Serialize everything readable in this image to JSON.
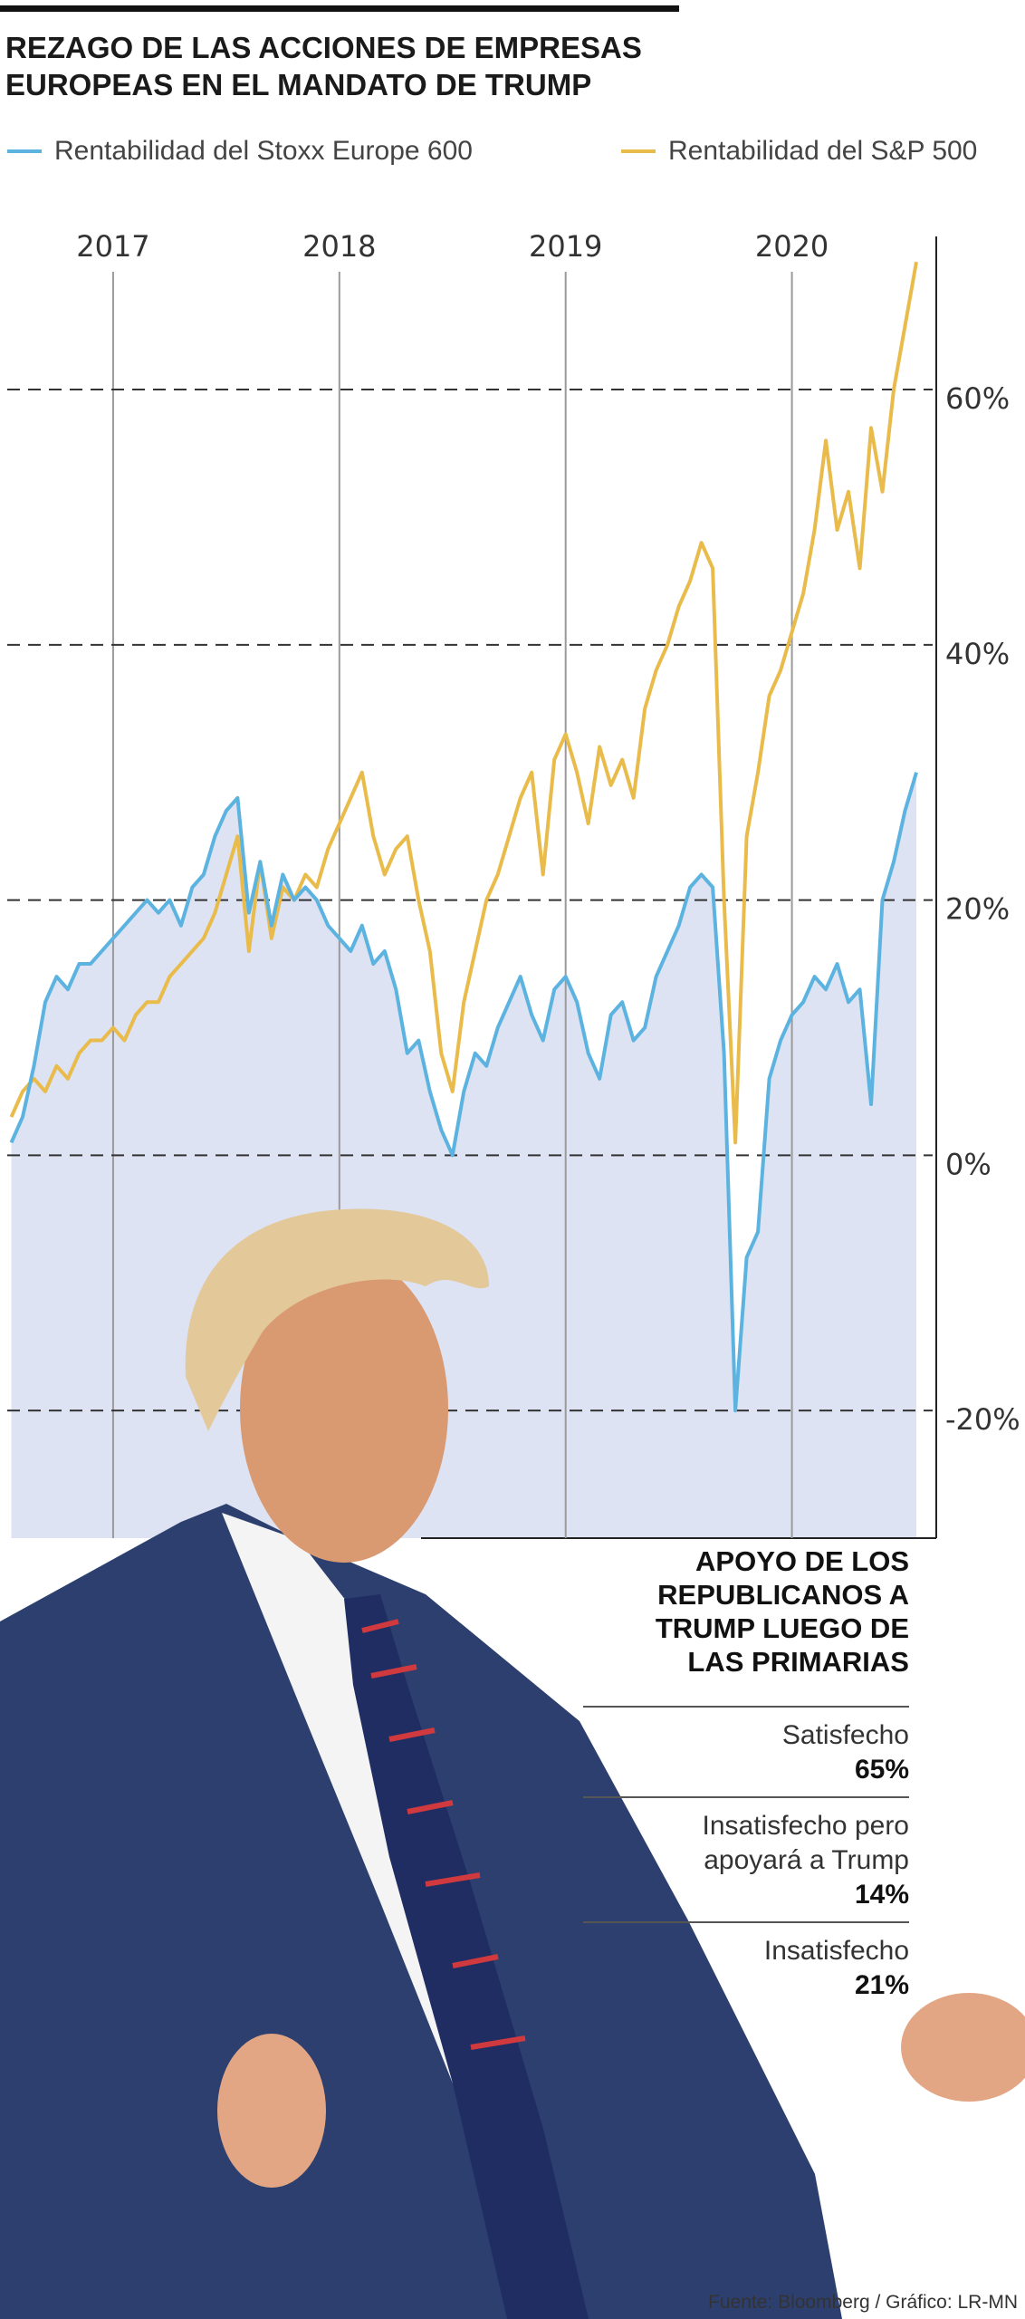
{
  "chart_data": {
    "type": "line",
    "title": "REZAGO DE LAS ACCIONES DE EMPRESAS EUROPEAS EN EL MANDATO DE TRUMP",
    "x": [
      2016.55,
      2016.6,
      2016.65,
      2016.7,
      2016.75,
      2016.8,
      2016.85,
      2016.9,
      2016.95,
      2017.0,
      2017.05,
      2017.1,
      2017.15,
      2017.2,
      2017.25,
      2017.3,
      2017.35,
      2017.4,
      2017.45,
      2017.5,
      2017.55,
      2017.6,
      2017.65,
      2017.7,
      2017.75,
      2017.8,
      2017.85,
      2017.9,
      2017.95,
      2018.0,
      2018.05,
      2018.1,
      2018.15,
      2018.2,
      2018.25,
      2018.3,
      2018.35,
      2018.4,
      2018.45,
      2018.5,
      2018.55,
      2018.6,
      2018.65,
      2018.7,
      2018.75,
      2018.8,
      2018.85,
      2018.9,
      2018.95,
      2019.0,
      2019.05,
      2019.1,
      2019.15,
      2019.2,
      2019.25,
      2019.3,
      2019.35,
      2019.4,
      2019.45,
      2019.5,
      2019.55,
      2019.6,
      2019.65,
      2019.7,
      2019.75,
      2019.8,
      2019.85,
      2019.9,
      2019.95,
      2020.0,
      2020.05,
      2020.1,
      2020.15,
      2020.2,
      2020.25,
      2020.3,
      2020.35,
      2020.4,
      2020.45,
      2020.5,
      2020.55
    ],
    "series": [
      {
        "name": "Rentabilidad del Stoxx Europe 600",
        "color": "#5cb3e0",
        "values": [
          1,
          3,
          7,
          12,
          14,
          13,
          15,
          15,
          16,
          17,
          18,
          19,
          20,
          19,
          20,
          18,
          21,
          22,
          25,
          27,
          28,
          19,
          23,
          18,
          22,
          20,
          21,
          20,
          18,
          17,
          16,
          18,
          15,
          16,
          13,
          8,
          9,
          5,
          2,
          0,
          5,
          8,
          7,
          10,
          12,
          14,
          11,
          9,
          13,
          14,
          12,
          8,
          6,
          11,
          12,
          9,
          10,
          14,
          16,
          18,
          21,
          22,
          21,
          8,
          -20,
          -8,
          -6,
          6,
          9,
          11,
          12,
          14,
          13,
          15,
          12,
          13,
          4,
          20,
          23,
          27,
          30
        ]
      },
      {
        "name": "Rentabilidad del S&P 500",
        "color": "#e9bb4b",
        "values": [
          3,
          5,
          6,
          5,
          7,
          6,
          8,
          9,
          9,
          10,
          9,
          11,
          12,
          12,
          14,
          15,
          16,
          17,
          19,
          22,
          25,
          16,
          23,
          17,
          21,
          20,
          22,
          21,
          24,
          26,
          28,
          30,
          25,
          22,
          24,
          25,
          20,
          16,
          8,
          5,
          12,
          16,
          20,
          22,
          25,
          28,
          30,
          22,
          31,
          33,
          30,
          26,
          32,
          29,
          31,
          28,
          35,
          38,
          40,
          43,
          45,
          48,
          46,
          20,
          1,
          25,
          30,
          36,
          38,
          41,
          44,
          49,
          56,
          49,
          52,
          46,
          57,
          52,
          60,
          65,
          70
        ]
      }
    ],
    "xlim": [
      2016.5,
      2020.63
    ],
    "xticks": [
      2017,
      2018,
      2019,
      2020
    ],
    "ylim": [
      -30,
      72
    ],
    "yticks": [
      {
        "value": -20,
        "label": "-20%"
      },
      {
        "value": 0,
        "label": "0%"
      },
      {
        "value": 20,
        "label": "20%"
      },
      {
        "value": 40,
        "label": "40%"
      },
      {
        "value": 60,
        "label": "60%"
      }
    ],
    "grid": true,
    "area_color": "#dde3f3"
  },
  "panel": {
    "title": "APOYO DE LOS REPUBLICANOS A TRUMP LUEGO DE LAS PRIMARIAS",
    "items": [
      {
        "label": "Satisfecho",
        "value": "65%"
      },
      {
        "label": "Insatisfecho pero apoyará a Trump",
        "value": "14%"
      },
      {
        "label": "Insatisfecho",
        "value": "21%"
      }
    ]
  },
  "source": "Fuente: Bloomberg / Gráfico: LR-MN"
}
